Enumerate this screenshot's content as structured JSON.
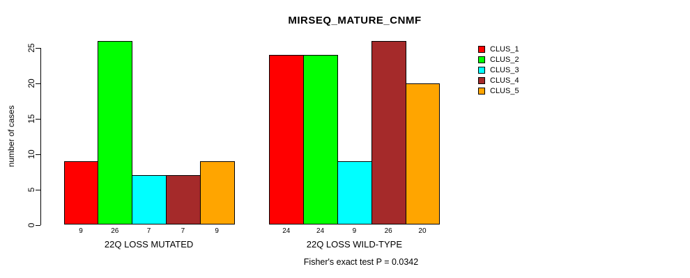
{
  "title": "MIRSEQ_MATURE_CNMF",
  "chart_data": {
    "type": "bar",
    "title": "MIRSEQ_MATURE_CNMF",
    "ylabel": "number of cases",
    "xlabel": "",
    "ylim": [
      0,
      26
    ],
    "yticks": [
      0,
      5,
      10,
      15,
      20,
      25
    ],
    "grid": false,
    "legend_position": "right",
    "legend": [
      {
        "label": "CLUS_1",
        "color": "#FF0000"
      },
      {
        "label": "CLUS_2",
        "color": "#00FF00"
      },
      {
        "label": "CLUS_3",
        "color": "#00FFFF"
      },
      {
        "label": "CLUS_4",
        "color": "#A52A2A"
      },
      {
        "label": "CLUS_5",
        "color": "#FFA500"
      }
    ],
    "series": [
      {
        "name": "CLUS_1",
        "values": [
          9,
          24
        ]
      },
      {
        "name": "CLUS_2",
        "values": [
          26,
          24
        ]
      },
      {
        "name": "CLUS_3",
        "values": [
          7,
          9
        ]
      },
      {
        "name": "CLUS_4",
        "values": [
          7,
          26
        ]
      },
      {
        "name": "CLUS_5",
        "values": [
          9,
          20
        ]
      }
    ],
    "groups": [
      {
        "label": "22Q LOSS MUTATED",
        "values": [
          9,
          26,
          7,
          7,
          9
        ]
      },
      {
        "label": "22Q LOSS WILD-TYPE",
        "values": [
          24,
          24,
          9,
          26,
          20
        ]
      }
    ],
    "annotation": "Fisher's exact test P = 0.0342"
  }
}
